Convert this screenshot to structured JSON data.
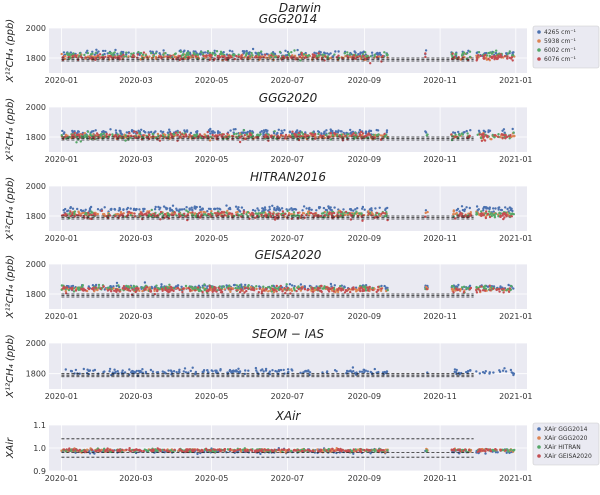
{
  "figure": {
    "title": "Darwin"
  },
  "chart_data": [
    {
      "type": "scatter",
      "title": "GGG2014",
      "ylabel": "X¹²CH₄ (ppb)",
      "ylim": [
        1700,
        2000
      ],
      "yticks": [
        "1800",
        "2000"
      ],
      "ytick_values": [
        1800,
        2000
      ],
      "xticks": [
        "2020-01",
        "2020-03",
        "2020-05",
        "2020-07",
        "2020-09",
        "2020-11",
        "2021-01"
      ],
      "xlim": [
        "2019-12-22",
        "2021-01-10"
      ],
      "grid": true,
      "reference_lines": [
        1780,
        1790,
        1800
      ],
      "legend": {
        "placement": "outside-right",
        "entries": [
          "4265 cm⁻¹",
          "5938 cm⁻¹",
          "6002 cm⁻¹",
          "6076 cm⁻¹"
        ]
      },
      "series": [
        {
          "name": "4265 cm⁻¹",
          "color": "#4c72b0",
          "mean": 1830,
          "spread": 22
        },
        {
          "name": "5938 cm⁻¹",
          "color": "#dd8452",
          "mean": 1805,
          "spread": 14
        },
        {
          "name": "6002 cm⁻¹",
          "color": "#55a868",
          "mean": 1820,
          "spread": 22
        },
        {
          "name": "6076 cm⁻¹",
          "color": "#c44e52",
          "mean": 1805,
          "spread": 18
        }
      ]
    },
    {
      "type": "scatter",
      "title": "GGG2020",
      "ylabel": "X¹²CH₄ (ppb)",
      "ylim": [
        1700,
        2000
      ],
      "yticks": [
        "1800",
        "2000"
      ],
      "ytick_values": [
        1800,
        2000
      ],
      "xticks": [
        "2020-01",
        "2020-03",
        "2020-05",
        "2020-07",
        "2020-09",
        "2020-11",
        "2021-01"
      ],
      "xlim": [
        "2019-12-22",
        "2021-01-10"
      ],
      "grid": true,
      "reference_lines": [
        1780,
        1790,
        1800
      ],
      "series": [
        {
          "color": "#4c72b0",
          "mean": 1830,
          "spread": 18
        },
        {
          "color": "#dd8452",
          "mean": 1805,
          "spread": 16
        },
        {
          "color": "#55a868",
          "mean": 1805,
          "spread": 22
        },
        {
          "color": "#c44e52",
          "mean": 1805,
          "spread": 22
        }
      ]
    },
    {
      "type": "scatter",
      "title": "HITRAN2016",
      "ylabel": "X¹²CH₄ (ppb)",
      "ylim": [
        1700,
        2000
      ],
      "yticks": [
        "1800",
        "2000"
      ],
      "ytick_values": [
        1800,
        2000
      ],
      "xticks": [
        "2020-01",
        "2020-03",
        "2020-05",
        "2020-07",
        "2020-09",
        "2020-11",
        "2021-01"
      ],
      "xlim": [
        "2019-12-22",
        "2021-01-10"
      ],
      "grid": true,
      "reference_lines": [
        1780,
        1790,
        1800
      ],
      "series": [
        {
          "color": "#4c72b0",
          "mean": 1845,
          "spread": 16
        },
        {
          "color": "#dd8452",
          "mean": 1815,
          "spread": 14
        },
        {
          "color": "#55a868",
          "mean": 1810,
          "spread": 20
        },
        {
          "color": "#c44e52",
          "mean": 1805,
          "spread": 22
        }
      ]
    },
    {
      "type": "scatter",
      "title": "GEISA2020",
      "ylabel": "X¹²CH₄ (ppb)",
      "ylim": [
        1700,
        2000
      ],
      "yticks": [
        "1800",
        "2000"
      ],
      "ytick_values": [
        1800,
        2000
      ],
      "xticks": [
        "2020-01",
        "2020-03",
        "2020-05",
        "2020-07",
        "2020-09",
        "2020-11",
        "2021-01"
      ],
      "xlim": [
        "2019-12-22",
        "2021-01-10"
      ],
      "grid": true,
      "reference_lines": [
        1780,
        1790,
        1800
      ],
      "series": [
        {
          "color": "#4c72b0",
          "mean": 1845,
          "spread": 16
        },
        {
          "color": "#dd8452",
          "mean": 1830,
          "spread": 14
        },
        {
          "color": "#55a868",
          "mean": 1840,
          "spread": 18
        },
        {
          "color": "#c44e52",
          "mean": 1830,
          "spread": 20
        }
      ]
    },
    {
      "type": "scatter",
      "title": "SEOM − IAS",
      "ylabel": "X¹²CH₄ (ppb)",
      "ylim": [
        1700,
        2000
      ],
      "yticks": [
        "1800",
        "2000"
      ],
      "ytick_values": [
        1800,
        2000
      ],
      "xticks": [
        "2020-01",
        "2020-03",
        "2020-05",
        "2020-07",
        "2020-09",
        "2020-11",
        "2021-01"
      ],
      "xlim": [
        "2019-12-22",
        "2021-01-10"
      ],
      "grid": true,
      "reference_lines": [
        1780,
        1790,
        1800
      ],
      "series": [
        {
          "color": "#4c72b0",
          "mean": 1812,
          "spread": 18
        }
      ]
    },
    {
      "type": "scatter",
      "title": "XAir",
      "ylabel": "XAir",
      "ylim": [
        0.9,
        1.1
      ],
      "yticks": [
        "0.9",
        "1.0",
        "1.1"
      ],
      "ytick_values": [
        0.9,
        1.0,
        1.1
      ],
      "xticks": [
        "2020-01",
        "2020-03",
        "2020-05",
        "2020-07",
        "2020-09",
        "2020-11",
        "2021-01"
      ],
      "xlim": [
        "2019-12-22",
        "2021-01-10"
      ],
      "grid": true,
      "reference_lines": [
        0.96,
        0.98,
        1.04
      ],
      "legend": {
        "placement": "outside-right",
        "entries": [
          "XAir GGG2014",
          "XAir GGG2020",
          "XAir HITRAN",
          "XAir GEISA2020"
        ]
      },
      "series": [
        {
          "name": "XAir GGG2014",
          "color": "#4c72b0",
          "mean": 0.985,
          "spread": 0.008
        },
        {
          "name": "XAir GGG2020",
          "color": "#dd8452",
          "mean": 0.99,
          "spread": 0.006
        },
        {
          "name": "XAir HITRAN",
          "color": "#55a868",
          "mean": 0.99,
          "spread": 0.006
        },
        {
          "name": "XAir GEISA2020",
          "color": "#c44e52",
          "mean": 0.99,
          "spread": 0.006
        }
      ]
    }
  ]
}
